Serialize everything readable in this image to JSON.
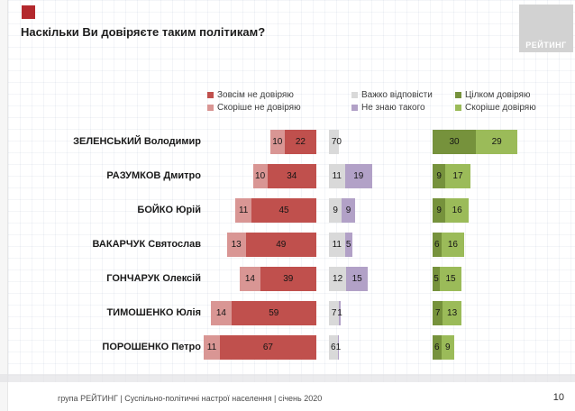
{
  "header": {
    "title": "Наскільки Ви довіряєте таким політикам?",
    "logo_text": "РЕЙТИНГ"
  },
  "colors": {
    "accent_red_square": "#b3282d",
    "logo_background": "#d2d2d2",
    "completely_distrust": "#C0504D",
    "rather_distrust": "#D99694",
    "hard_to_answer": "#D9D9D9",
    "dont_know_person": "#B2A1C7",
    "fully_trust": "#76923C",
    "rather_trust": "#9BBB59"
  },
  "legend": {
    "columns": [
      [
        {
          "label": "Зовсім не довіряю",
          "color": "#C0504D"
        },
        {
          "label": "Скоріше не довіряю",
          "color": "#D99694"
        }
      ],
      [
        {
          "label": "Важко відповісти",
          "color": "#D9D9D9"
        },
        {
          "label": "Не знаю такого",
          "color": "#B2A1C7"
        }
      ],
      [
        {
          "label": "Цілком довіряю",
          "color": "#76923C"
        },
        {
          "label": "Скоріше довіряю",
          "color": "#9BBB59"
        }
      ]
    ]
  },
  "chart_data": {
    "type": "bar",
    "variant": "horizontal-diverging-stacked",
    "title": "Наскільки Ви довіряєте таким політикам?",
    "unit": "%",
    "legend_position": "top",
    "axes": "none (values labeled on bars)",
    "categories": [
      "ЗЕЛЕНСЬКИЙ Володимир",
      "РАЗУМКОВ Дмитро",
      "БОЙКО Юрій",
      "ВАКАРЧУК Святослав",
      "ГОНЧАРУК Олексій",
      "ТИМОШЕНКО Юлія",
      "ПОРОШЕНКО Петро"
    ],
    "series": [
      {
        "name": "Скоріше не довіряю",
        "group": "negative",
        "color": "#D99694",
        "values": [
          10,
          10,
          11,
          13,
          14,
          14,
          11
        ]
      },
      {
        "name": "Зовсім не довіряю",
        "group": "negative",
        "color": "#C0504D",
        "values": [
          22,
          34,
          45,
          49,
          39,
          59,
          67
        ]
      },
      {
        "name": "Важко відповісти",
        "group": "neutral",
        "color": "#D9D9D9",
        "values": [
          7,
          11,
          9,
          11,
          12,
          7,
          6
        ]
      },
      {
        "name": "Не знаю такого",
        "group": "neutral",
        "color": "#B2A1C7",
        "values": [
          0,
          19,
          9,
          5,
          15,
          1,
          1
        ]
      },
      {
        "name": "Цілком довіряю",
        "group": "positive",
        "color": "#76923C",
        "values": [
          30,
          9,
          9,
          6,
          5,
          7,
          6
        ]
      },
      {
        "name": "Скоріше довіряю",
        "group": "positive",
        "color": "#9BBB59",
        "values": [
          29,
          17,
          16,
          16,
          15,
          13,
          9
        ]
      }
    ]
  },
  "footer": {
    "caption": "група РЕЙТИНГ | Суспільно-політичні настрої населення | січень 2020",
    "page_number": "10"
  }
}
